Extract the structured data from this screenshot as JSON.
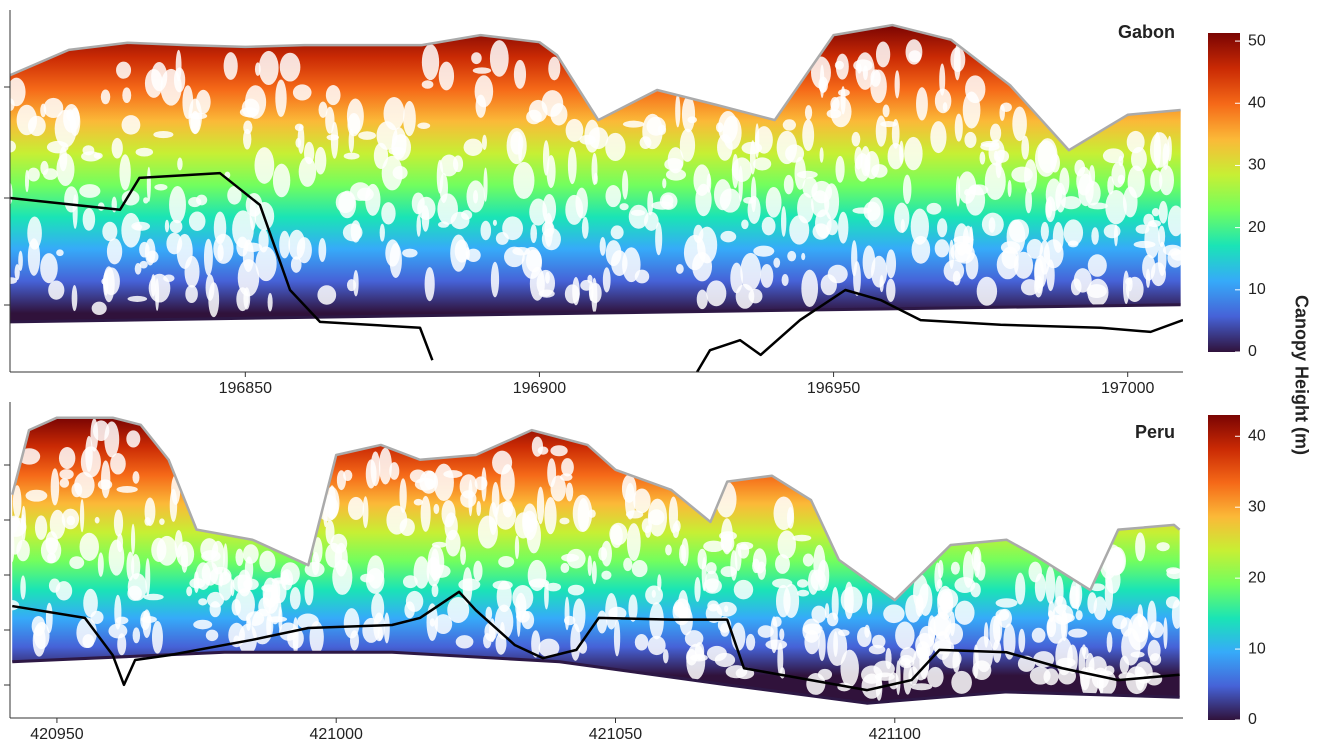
{
  "colorbar_label": "Canopy Height (m)",
  "colormap": [
    "#30123b",
    "#4662d7",
    "#36aaf9",
    "#1ae4b6",
    "#72fe5e",
    "#c7ef34",
    "#fbb938",
    "#f56918",
    "#ca2a04",
    "#7a0403"
  ],
  "chart_data": [
    {
      "type": "profile",
      "title": "Gabon",
      "xlim": [
        196810,
        197009.4
      ],
      "ylim": [
        0,
        60
      ],
      "xticks": [
        196850,
        196900,
        196950,
        197000
      ],
      "clim": [
        0,
        51.3
      ],
      "cticks": [
        0,
        10,
        20,
        30,
        40,
        50
      ],
      "series": [
        {
          "color": "#aaaaaa",
          "x": [
            196810,
            196820,
            196830,
            196840,
            196850,
            196860,
            196870,
            196880,
            196890,
            196900,
            196903,
            196910,
            196920,
            196930,
            196940,
            196950,
            196960,
            196970,
            196980,
            196990,
            197000,
            197009
          ],
          "values": [
            50.3,
            54.6,
            55.8,
            55.4,
            55.1,
            55.4,
            55.4,
            55.4,
            57.1,
            55.9,
            53.7,
            42.7,
            47.8,
            45.3,
            42.7,
            57.1,
            58.8,
            56.3,
            48.6,
            37.6,
            43.6,
            44.4
          ]
        },
        {
          "color": "#2d1845",
          "x": [
            196810,
            196910,
            197009
          ],
          "values": [
            8.5,
            10.0,
            11.4
          ]
        },
        {
          "color": "#000000",
          "x": [
            196810,
            196828.7,
            196832,
            196845.7,
            196852.5,
            196857.6,
            196862.7,
            196879.7,
            196881.8,
            196900,
            196926.8,
            196929,
            196934.1,
            196937.6,
            196944.3,
            196952,
            196958,
            196964.8,
            196978.4,
            196995.4,
            197003.9,
            197009.4
          ],
          "values": [
            29.5,
            27.5,
            32.9,
            33.7,
            28.3,
            13.9,
            8.5,
            7.5,
            2.0,
            null,
            0,
            3.7,
            5.4,
            2.9,
            8.8,
            13.9,
            12.2,
            8.8,
            8.0,
            7.5,
            6.8,
            8.8
          ]
        }
      ]
    },
    {
      "type": "profile",
      "title": "Peru",
      "xlim": [
        420941.6,
        421151.6
      ],
      "ylim": [
        0,
        52
      ],
      "xticks": [
        420950,
        421000,
        421050,
        421100
      ],
      "clim": [
        0,
        43
      ],
      "cticks": [
        0,
        10,
        20,
        30,
        40
      ],
      "series": [
        {
          "color": "#aaaaaa",
          "x": [
            420942,
            420945,
            420950,
            420960,
            420965,
            420970,
            420975,
            420985,
            420995,
            421000,
            421008,
            421015,
            421025,
            421035,
            421045,
            421050,
            421060,
            421067,
            421070,
            421078,
            421085,
            421090,
            421100,
            421110,
            421120,
            421125,
            421135,
            421140,
            421150,
            421151
          ],
          "values": [
            37.7,
            48.6,
            50.7,
            50.7,
            49.5,
            43.6,
            31.8,
            30.1,
            25.8,
            44.4,
            46.1,
            43.6,
            44.4,
            48.6,
            46.1,
            41.9,
            38.5,
            33.1,
            39.9,
            40.9,
            36.8,
            26.7,
            19.9,
            29.2,
            30.1,
            27.5,
            21.6,
            31.8,
            32.6,
            31.8
          ]
        },
        {
          "color": "#2d1845",
          "x": [
            420942,
            420980,
            421010,
            421040,
            421070,
            421095,
            421120,
            421151
          ],
          "values": [
            9.5,
            11.1,
            11.1,
            9.5,
            5.6,
            2.5,
            4.4,
            3.5
          ]
        },
        {
          "color": "#000000",
          "x": [
            420942,
            420955,
            420960,
            420962,
            420964,
            420970,
            420985,
            420995,
            421010,
            421015,
            421022,
            421025,
            421032,
            421037,
            421043,
            421047,
            421060,
            421070,
            421073,
            421085,
            421095,
            421103,
            421108,
            421120,
            421130,
            421140,
            421151
          ],
          "values": [
            18.9,
            16.9,
            10.6,
            5.6,
            9.8,
            10.6,
            13.2,
            15.2,
            15.7,
            16.9,
            21.3,
            18.2,
            12.3,
            10.1,
            11.5,
            16.9,
            16.6,
            16.6,
            8.4,
            6.4,
            4.7,
            6.4,
            11.5,
            11.1,
            8.4,
            6.4,
            7.3
          ]
        }
      ]
    }
  ]
}
